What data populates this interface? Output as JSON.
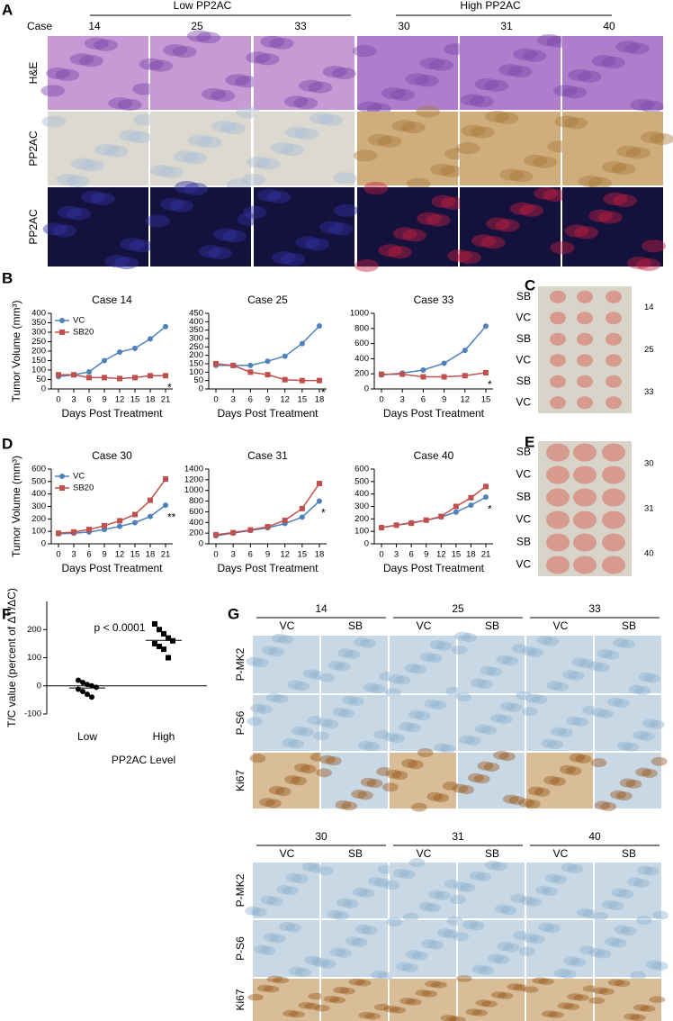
{
  "panels": {
    "A": {
      "letter": "A",
      "case_label": "Case",
      "groups": [
        "Low PP2AC",
        "High PP2AC"
      ],
      "cases": [
        "14",
        "25",
        "33",
        "30",
        "31",
        "40"
      ],
      "rows": [
        "H&E",
        "PP2AC",
        "PP2AC"
      ]
    },
    "B": {
      "letter": "B"
    },
    "C": {
      "letter": "C",
      "rows": [
        "SB",
        "VC",
        "SB",
        "VC",
        "SB",
        "VC"
      ],
      "cases": [
        "14",
        "25",
        "33"
      ]
    },
    "D": {
      "letter": "D"
    },
    "E": {
      "letter": "E",
      "rows": [
        "SB",
        "VC",
        "SB",
        "VC",
        "SB",
        "VC"
      ],
      "cases": [
        "30",
        "31",
        "40"
      ]
    },
    "F": {
      "letter": "F"
    },
    "G": {
      "letter": "G",
      "blocks": [
        {
          "cases": [
            "14",
            "25",
            "33"
          ],
          "columns": [
            "VC",
            "SB",
            "VC",
            "SB",
            "VC",
            "SB"
          ],
          "rows": [
            "P-MK2",
            "P-S6",
            "Ki67"
          ]
        },
        {
          "cases": [
            "30",
            "31",
            "40"
          ],
          "columns": [
            "VC",
            "SB",
            "VC",
            "SB",
            "VC",
            "SB"
          ],
          "rows": [
            "P-MK2",
            "P-S6",
            "Ki67"
          ]
        }
      ]
    }
  },
  "chart_data": [
    {
      "type": "line",
      "title": "Case 14",
      "ylabel": "Tumor Volume (mm³)",
      "xlabel": "Days Post Treatment",
      "x": [
        0,
        3,
        6,
        9,
        12,
        15,
        18,
        21
      ],
      "xlim": [
        0,
        21
      ],
      "xticks": [
        0,
        3,
        6,
        9,
        12,
        15,
        18,
        21
      ],
      "ylim": [
        0,
        400
      ],
      "yticks": [
        0,
        50,
        100,
        150,
        200,
        250,
        300,
        350,
        400
      ],
      "legend": "upper left",
      "annotation": "*",
      "series": [
        {
          "name": "VC",
          "color": "#4f81bd",
          "marker": "circle",
          "values": [
            65,
            75,
            90,
            150,
            195,
            215,
            265,
            330
          ]
        },
        {
          "name": "SB20",
          "color": "#c0504d",
          "marker": "square",
          "values": [
            75,
            75,
            60,
            60,
            55,
            60,
            70,
            70
          ]
        }
      ]
    },
    {
      "type": "line",
      "title": "Case 25",
      "xlabel": "Days Post Treatment",
      "x": [
        0,
        3,
        6,
        9,
        12,
        15,
        18
      ],
      "xlim": [
        0,
        18
      ],
      "xticks": [
        0,
        3,
        6,
        9,
        12,
        15,
        18
      ],
      "ylim": [
        0,
        450
      ],
      "yticks": [
        0,
        50,
        100,
        150,
        200,
        250,
        300,
        350,
        400,
        450
      ],
      "annotation": "*",
      "series": [
        {
          "color": "#4f81bd",
          "marker": "circle",
          "values": [
            140,
            140,
            140,
            165,
            195,
            270,
            375
          ]
        },
        {
          "color": "#c0504d",
          "marker": "square",
          "values": [
            150,
            140,
            100,
            85,
            55,
            50,
            50
          ]
        }
      ]
    },
    {
      "type": "line",
      "title": "Case 33",
      "xlabel": "Days Post Treatment",
      "x": [
        0,
        3,
        6,
        9,
        12,
        15
      ],
      "xlim": [
        0,
        15
      ],
      "xticks": [
        0,
        3,
        6,
        9,
        12,
        15
      ],
      "ylim": [
        0,
        1000
      ],
      "yticks": [
        0,
        200,
        400,
        600,
        800,
        1000
      ],
      "annotation": "*",
      "series": [
        {
          "color": "#4f81bd",
          "marker": "circle",
          "values": [
            185,
            210,
            250,
            340,
            510,
            830
          ]
        },
        {
          "color": "#c0504d",
          "marker": "square",
          "values": [
            195,
            195,
            160,
            160,
            175,
            215
          ]
        }
      ]
    },
    {
      "type": "line",
      "title": "Case 30",
      "ylabel": "Tumor Volume (mm³)",
      "xlabel": "Days Post Treatment",
      "x": [
        0,
        3,
        6,
        9,
        12,
        15,
        18,
        21
      ],
      "xlim": [
        0,
        21
      ],
      "xticks": [
        0,
        3,
        6,
        9,
        12,
        15,
        18,
        21
      ],
      "ylim": [
        0,
        600
      ],
      "yticks": [
        0,
        100,
        200,
        300,
        400,
        500,
        600
      ],
      "legend": "upper left",
      "annotation": "**",
      "series": [
        {
          "name": "VC",
          "color": "#4f81bd",
          "marker": "circle",
          "values": [
            80,
            85,
            95,
            115,
            140,
            170,
            220,
            310
          ]
        },
        {
          "name": "SB20",
          "color": "#c0504d",
          "marker": "square",
          "values": [
            85,
            95,
            115,
            145,
            185,
            235,
            350,
            520
          ]
        }
      ]
    },
    {
      "type": "line",
      "title": "Case 31",
      "xlabel": "Days Post Treatment",
      "x": [
        0,
        3,
        6,
        9,
        12,
        15,
        18
      ],
      "xlim": [
        0,
        18
      ],
      "xticks": [
        0,
        3,
        6,
        9,
        12,
        15,
        18
      ],
      "ylim": [
        0,
        1400
      ],
      "yticks": [
        0,
        200,
        400,
        600,
        800,
        1000,
        1200,
        1400
      ],
      "annotation": "*",
      "series": [
        {
          "color": "#4f81bd",
          "marker": "circle",
          "values": [
            150,
            200,
            250,
            300,
            380,
            500,
            800
          ]
        },
        {
          "color": "#c0504d",
          "marker": "square",
          "values": [
            170,
            210,
            260,
            320,
            440,
            660,
            1130
          ]
        }
      ]
    },
    {
      "type": "line",
      "title": "Case 40",
      "xlabel": "Days Post Treatment",
      "x": [
        0,
        3,
        6,
        9,
        12,
        15,
        18,
        21
      ],
      "xlim": [
        0,
        21
      ],
      "xticks": [
        0,
        3,
        6,
        9,
        12,
        15,
        18,
        21
      ],
      "ylim": [
        0,
        600
      ],
      "yticks": [
        0,
        100,
        200,
        300,
        400,
        500,
        600
      ],
      "annotation": "*",
      "series": [
        {
          "color": "#4f81bd",
          "marker": "circle",
          "values": [
            130,
            150,
            170,
            190,
            215,
            255,
            310,
            375
          ]
        },
        {
          "color": "#c0504d",
          "marker": "square",
          "values": [
            130,
            150,
            165,
            190,
            220,
            300,
            370,
            460
          ]
        }
      ]
    },
    {
      "type": "strip",
      "ylabel": "T/C value (percent of ΔT/ΔC)",
      "xlabel": "PP2AC Level",
      "annotation": "p < 0.0001",
      "categories": [
        "Low",
        "High"
      ],
      "ylim": [
        -100,
        300
      ],
      "yticks": [
        -100,
        0,
        100,
        200
      ],
      "series": [
        {
          "marker": "circle",
          "color": "#000000",
          "values": [
            20,
            12,
            5,
            0,
            -5,
            -12,
            -20,
            -30,
            -40
          ]
        },
        {
          "marker": "square",
          "color": "#000000",
          "values": [
            220,
            200,
            185,
            170,
            160,
            150,
            140,
            130,
            100
          ]
        }
      ]
    }
  ]
}
